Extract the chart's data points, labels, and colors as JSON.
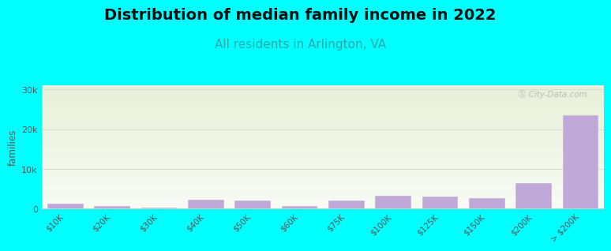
{
  "title": "Distribution of median family income in 2022",
  "subtitle": "All residents in Arlington, VA",
  "title_fontsize": 14,
  "subtitle_fontsize": 11,
  "ylabel": "families",
  "background_color": "#00FFFF",
  "plot_bg_top": "#e8f0d8",
  "plot_bg_bottom": "#f8fbf4",
  "bar_color": "#c0a8d8",
  "bar_edgecolor": "#c8b4dc",
  "grid_color": "#d8d8d8",
  "categories": [
    "$10K",
    "$20K",
    "$30K",
    "$40K",
    "$50K",
    "$60K",
    "$75K",
    "$100K",
    "$125K",
    "$150K",
    "$200K",
    "> $200K"
  ],
  "values": [
    1200,
    700,
    300,
    2200,
    2000,
    600,
    2000,
    3200,
    3000,
    2700,
    6500,
    23500
  ],
  "ylim": [
    0,
    31000
  ],
  "yticks": [
    0,
    10000,
    20000,
    30000
  ],
  "watermark": "Ⓢ City-Data.com"
}
